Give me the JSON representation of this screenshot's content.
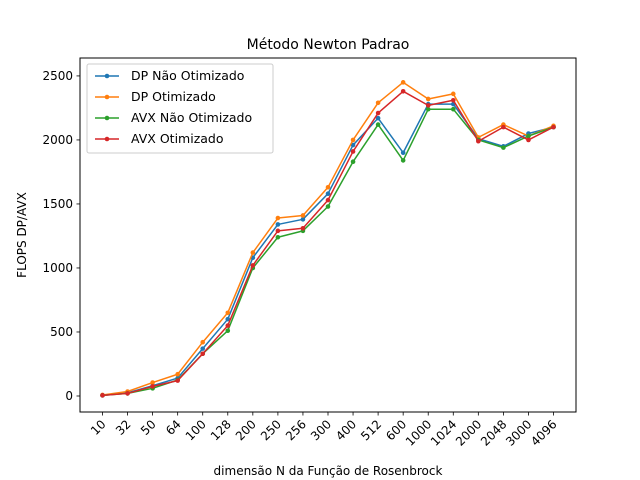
{
  "chart_data": {
    "type": "line",
    "title": "Método Newton Padrao",
    "xlabel": "dimensão N da Função de Rosenbrock",
    "ylabel": "FLOPS DP/AVX",
    "categories": [
      "10",
      "32",
      "50",
      "64",
      "100",
      "128",
      "200",
      "250",
      "256",
      "300",
      "400",
      "512",
      "600",
      "1000",
      "1024",
      "2000",
      "2048",
      "3000",
      "4096"
    ],
    "yticks": [
      0,
      500,
      1000,
      1500,
      2000,
      2500
    ],
    "ylim": [
      -125,
      2640
    ],
    "grid": false,
    "legend_position": "upper-left",
    "series": [
      {
        "name": "DP Não Otimizado",
        "color": "#1f77b4",
        "values": [
          5,
          25,
          80,
          140,
          370,
          600,
          1080,
          1340,
          1380,
          1580,
          1960,
          2170,
          1900,
          2280,
          2280,
          2010,
          1950,
          2050,
          2100
        ]
      },
      {
        "name": "DP Otimizado",
        "color": "#ff7f0e",
        "values": [
          8,
          35,
          105,
          170,
          420,
          650,
          1120,
          1390,
          1410,
          1630,
          2000,
          2290,
          2450,
          2320,
          2360,
          2020,
          2120,
          2030,
          2110
        ]
      },
      {
        "name": "AVX Não Otimizado",
        "color": "#2ca02c",
        "values": [
          5,
          20,
          60,
          125,
          330,
          510,
          1000,
          1240,
          1290,
          1480,
          1830,
          2120,
          1840,
          2240,
          2240,
          2000,
          1940,
          2030,
          2100
        ]
      },
      {
        "name": "AVX Otimizado",
        "color": "#d62728",
        "values": [
          5,
          20,
          75,
          120,
          330,
          550,
          1020,
          1290,
          1310,
          1530,
          1910,
          2210,
          2380,
          2270,
          2310,
          1990,
          2100,
          2000,
          2100
        ]
      }
    ]
  }
}
